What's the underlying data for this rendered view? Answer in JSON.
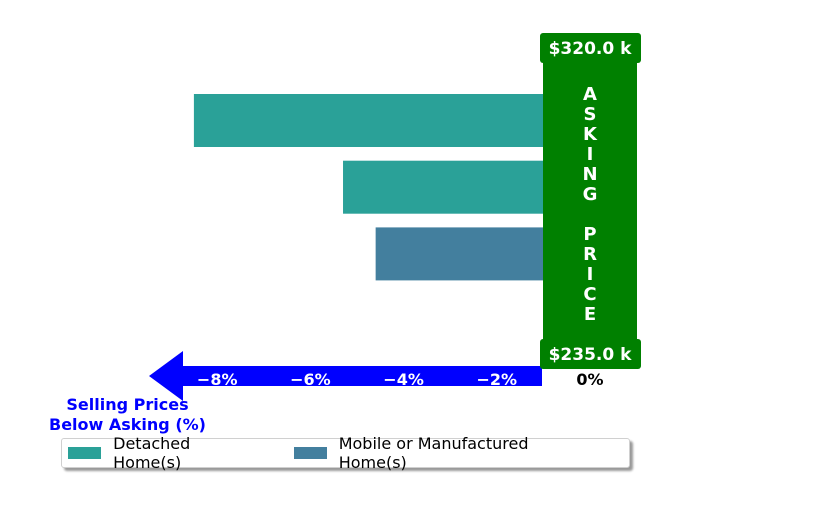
{
  "chart_data": {
    "type": "bar",
    "orientation": "horizontal",
    "categories": [
      "",
      "",
      "",
      ""
    ],
    "bars": [
      {
        "series": "Detached Home(s)",
        "value": -8.5
      },
      {
        "series": "Detached Home(s)",
        "value": -5.3
      },
      {
        "series": "Mobile or Manufactured Home(s)",
        "value": -4.6
      },
      {
        "series": "Detached Home(s)",
        "value": 0.15
      }
    ],
    "series": [
      {
        "name": "Detached Home(s)",
        "color": "#2aa198"
      },
      {
        "name": "Mobile or Manufactured Home(s)",
        "color": "#437f9e"
      }
    ],
    "x_ticks": [
      {
        "value": -8,
        "label": "−8%"
      },
      {
        "value": -6,
        "label": "−6%"
      },
      {
        "value": -4,
        "label": "−4%"
      },
      {
        "value": -2,
        "label": "−2%"
      },
      {
        "value": 0,
        "label": "0%"
      }
    ],
    "xlim": [
      -9,
      0.2
    ],
    "xlabel": "Selling Prices\nBelow Asking (%)",
    "asking_price_label": "ASKING PRICE",
    "asking_price_top": "$320.0 k",
    "asking_price_bottom": "$235.0 k",
    "legend_placement": "bottom",
    "colors": {
      "arrow": "#0000ff",
      "asking_box": "#008000",
      "tick_text": "#ffffff",
      "zero_tick": "#000000",
      "axis_title": "#0000ff"
    }
  }
}
